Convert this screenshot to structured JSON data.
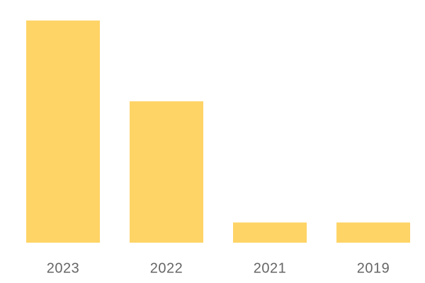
{
  "chart_data": {
    "type": "bar",
    "categories": [
      "2023",
      "2022",
      "2021",
      "2019"
    ],
    "values": [
      11,
      7,
      1,
      1
    ],
    "color": "#fed466",
    "ylim": [
      0,
      11
    ]
  }
}
